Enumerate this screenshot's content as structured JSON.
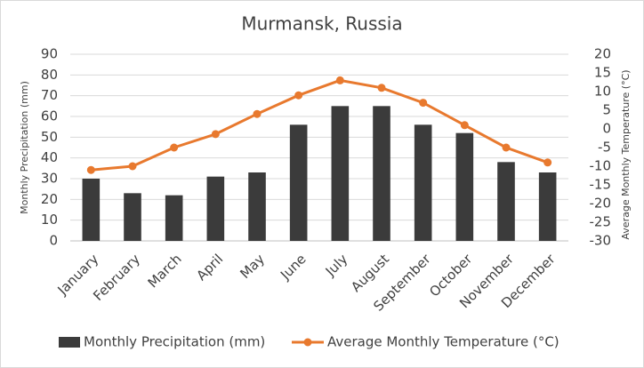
{
  "chart_data": {
    "type": "bar-line",
    "title": "Murmansk, Russia",
    "categories": [
      "January",
      "February",
      "March",
      "April",
      "May",
      "June",
      "July",
      "August",
      "September",
      "October",
      "November",
      "December"
    ],
    "series": [
      {
        "name": "Monthly Precipitation  (mm)",
        "type": "bar",
        "color": "#3b3b3b",
        "values": [
          30,
          23,
          22,
          31,
          33,
          56,
          65,
          65,
          56,
          52,
          38,
          33
        ]
      },
      {
        "name": "Average Monthly  Temperature (°C)",
        "type": "line",
        "axis": "y2",
        "color": "#e8792e",
        "values": [
          -11,
          -10,
          -5,
          -1.4,
          4,
          9,
          13,
          11,
          7,
          1,
          -5,
          -9
        ]
      }
    ],
    "ylabel": "Monthly Precipitation  (mm)",
    "y2label": "Average Monthly  Temperature (°C)",
    "ylim": [
      0,
      90
    ],
    "yticks": [
      0,
      10,
      20,
      30,
      40,
      50,
      60,
      70,
      80,
      90
    ],
    "y2lim": [
      -30,
      20
    ],
    "y2ticks": [
      -30,
      -25,
      -20,
      -15,
      -10,
      -5,
      0,
      5,
      10,
      15,
      20
    ],
    "grid": true,
    "legend": "bottom"
  }
}
